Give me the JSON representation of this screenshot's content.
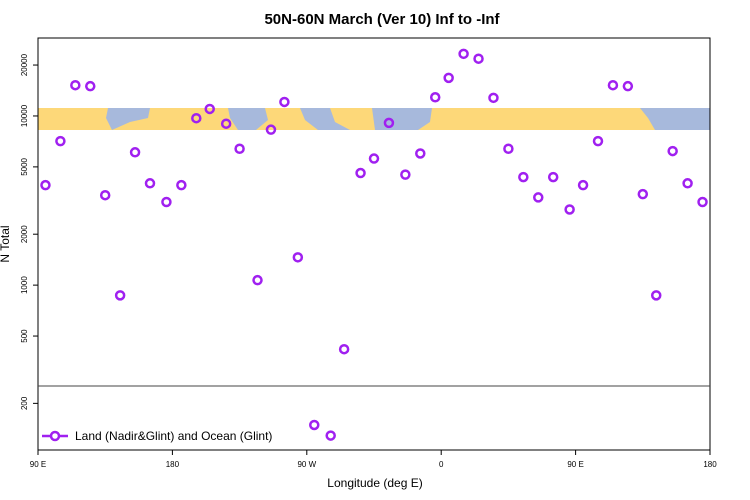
{
  "chart_data": {
    "type": "scatter",
    "title": "50N-60N March (Ver 10)   Inf to -Inf",
    "xlabel": "Longitude (deg E)",
    "ylabel": "N Total",
    "xlim": [
      -270,
      180
    ],
    "ylim": [
      106,
      28900
    ],
    "log_y": true,
    "xticks": [
      {
        "value": -270,
        "label": "90 E"
      },
      {
        "value": -180,
        "label": "180"
      },
      {
        "value": -90,
        "label": "90 W"
      },
      0,
      {
        "value": 90,
        "label": "90 E"
      },
      180
    ],
    "yticks": [
      200,
      500,
      1000,
      2000,
      5000,
      10000,
      20000
    ],
    "legend_position": "bottom-left",
    "series": [
      {
        "name": "Land (Nadir&Glint) and Ocean (Glint)",
        "color": "#a020f0",
        "x": [
          -265,
          -255,
          -245,
          -235,
          -225,
          -215,
          -205,
          -195,
          -184,
          -174,
          -164,
          -155,
          -144,
          -135,
          -123,
          -114,
          -105,
          -96,
          -85,
          -74,
          -65,
          -54,
          -45,
          -35,
          -24,
          -14,
          -4,
          5,
          15,
          25,
          35,
          45,
          55,
          65,
          75,
          86,
          95,
          105,
          115,
          125,
          135,
          144,
          155,
          165,
          175
        ],
        "values": [
          3900,
          7100,
          15200,
          15000,
          3400,
          870,
          6100,
          4000,
          3100,
          3900,
          9700,
          11000,
          9000,
          6400,
          1070,
          8300,
          12100,
          1460,
          149,
          129,
          418,
          4600,
          5600,
          9100,
          4500,
          6000,
          12900,
          16800,
          23300,
          21800,
          12800,
          6400,
          4350,
          3300,
          4350,
          2800,
          3900,
          7100,
          15200,
          15000,
          3450,
          870,
          6200,
          4000,
          3100
        ]
      }
    ]
  }
}
